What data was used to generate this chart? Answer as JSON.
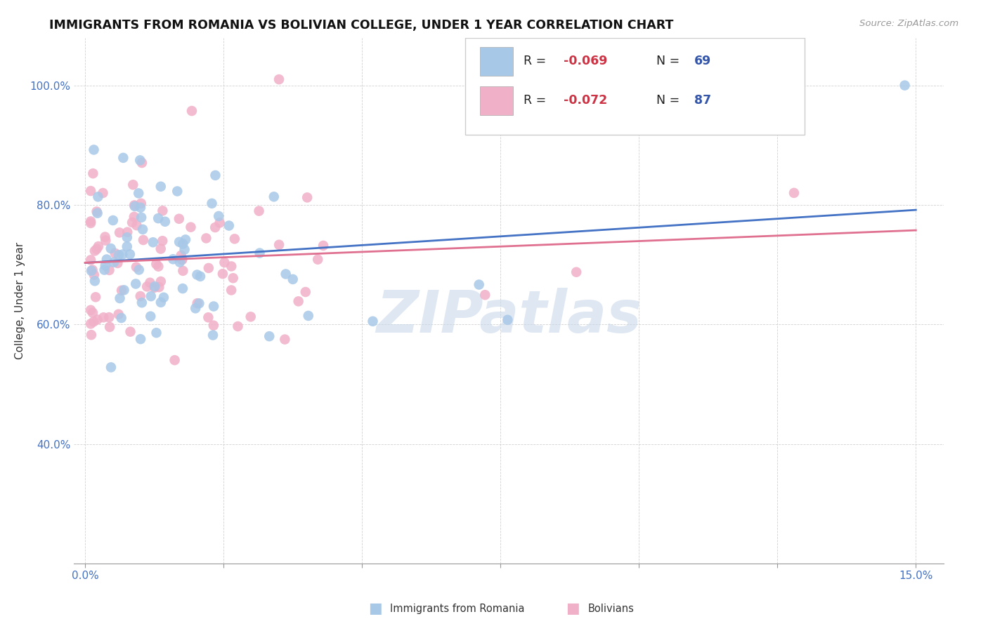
{
  "title": "IMMIGRANTS FROM ROMANIA VS BOLIVIAN COLLEGE, UNDER 1 YEAR CORRELATION CHART",
  "source": "Source: ZipAtlas.com",
  "ylabel": "College, Under 1 year",
  "xlim": [
    -0.002,
    0.155
  ],
  "ylim": [
    0.2,
    1.08
  ],
  "xtick_positions": [
    0.0,
    0.025,
    0.05,
    0.075,
    0.1,
    0.125,
    0.15
  ],
  "xtick_labels": [
    "0.0%",
    "",
    "",
    "",
    "",
    "",
    "15.0%"
  ],
  "ytick_positions": [
    0.4,
    0.6,
    0.8,
    1.0
  ],
  "ytick_labels": [
    "40.0%",
    "60.0%",
    "80.0%",
    "100.0%"
  ],
  "color_romania": "#a8c8e8",
  "color_bolivia": "#f0b0c8",
  "color_line_romania": "#4472c4",
  "color_line_bolivia": "#e07090",
  "watermark_text": "ZIPatlas",
  "watermark_color": "#c8d8ea",
  "legend_r1": "-0.069",
  "legend_n1": "69",
  "legend_r2": "-0.072",
  "legend_n2": "87",
  "bottom_legend_romania": "Immigrants from Romania",
  "bottom_legend_bolivia": "Bolivians"
}
